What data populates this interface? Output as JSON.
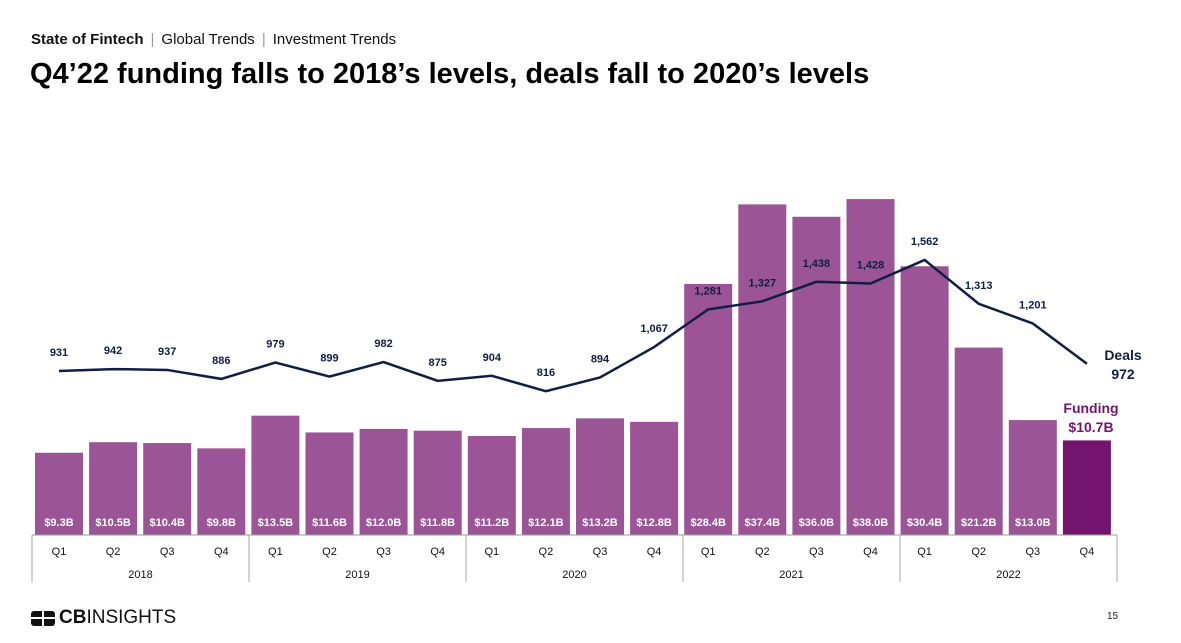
{
  "breadcrumb": {
    "section": "State of Fintech",
    "sub1": "Global Trends",
    "sub2": "Investment Trends"
  },
  "page_title": "Q4’22 funding falls to 2018’s levels, deals fall to 2020’s levels",
  "logo_text": "CBINSIGHTS",
  "page_number": "15",
  "colors": {
    "bar": "#9B5597",
    "bar_highlight": "#74146F",
    "line": "#0F1E45",
    "funding_label": "#74146F"
  },
  "chart_data": {
    "type": "bar+line",
    "title": "Q4’22 funding falls to 2018’s levels, deals fall to 2020’s levels",
    "years": [
      "2018",
      "2019",
      "2020",
      "2021",
      "2022"
    ],
    "categories": [
      "Q1",
      "Q2",
      "Q3",
      "Q4",
      "Q1",
      "Q2",
      "Q3",
      "Q4",
      "Q1",
      "Q2",
      "Q3",
      "Q4",
      "Q1",
      "Q2",
      "Q3",
      "Q4",
      "Q1",
      "Q2",
      "Q3",
      "Q4"
    ],
    "series": [
      {
        "name": "Funding",
        "unit": "$B",
        "type": "bar",
        "values": [
          9.3,
          10.5,
          10.4,
          9.8,
          13.5,
          11.6,
          12.0,
          11.8,
          11.2,
          12.1,
          13.2,
          12.8,
          28.4,
          37.4,
          36.0,
          38.0,
          30.4,
          21.2,
          13.0,
          10.7
        ],
        "labels": [
          "$9.3B",
          "$10.5B",
          "$10.4B",
          "$9.8B",
          "$13.5B",
          "$11.6B",
          "$12.0B",
          "$11.8B",
          "$11.2B",
          "$12.1B",
          "$13.2B",
          "$12.8B",
          "$28.4B",
          "$37.4B",
          "$36.0B",
          "$38.0B",
          "$30.4B",
          "$21.2B",
          "$13.0B",
          ""
        ]
      },
      {
        "name": "Deals",
        "type": "line",
        "values": [
          931,
          942,
          937,
          886,
          979,
          899,
          982,
          875,
          904,
          816,
          894,
          1067,
          1281,
          1327,
          1438,
          1428,
          1562,
          1313,
          1201,
          972
        ],
        "labels": [
          "931",
          "942",
          "937",
          "886",
          "979",
          "899",
          "982",
          "875",
          "904",
          "816",
          "894",
          "1,067",
          "1,281",
          "1,327",
          "1,438",
          "1,428",
          "1,562",
          "1,313",
          "1,201",
          ""
        ]
      }
    ],
    "end_labels": {
      "deals_name": "Deals",
      "deals_value": "972",
      "funding_name": "Funding",
      "funding_value": "$10.7B"
    }
  }
}
